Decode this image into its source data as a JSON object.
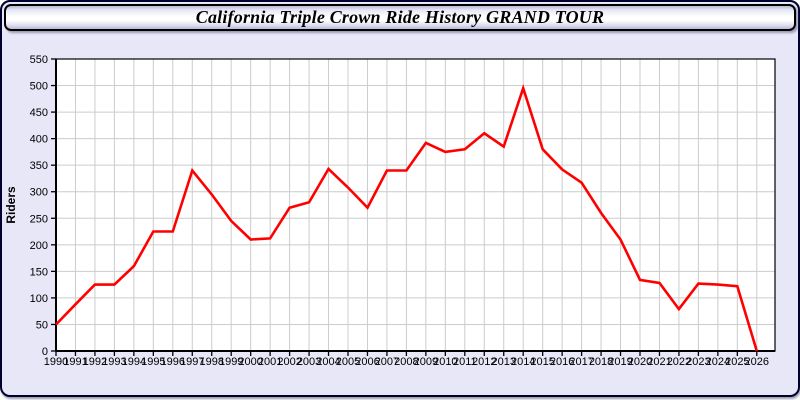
{
  "chart_data": {
    "type": "line",
    "title": "California Triple Crown Ride History GRAND TOUR",
    "xlabel": "",
    "ylabel": "Riders",
    "x": [
      1990,
      1991,
      1992,
      1993,
      1994,
      1995,
      1996,
      1997,
      1998,
      1999,
      2000,
      2001,
      2002,
      2003,
      2004,
      2005,
      2006,
      2007,
      2008,
      2009,
      2010,
      2011,
      2012,
      2013,
      2014,
      2015,
      2016,
      2017,
      2018,
      2019,
      2020,
      2021,
      2022,
      2023,
      2024,
      2025,
      2026
    ],
    "series": [
      {
        "name": "Riders",
        "color": "#ff0000",
        "values": [
          50,
          88,
          125,
          125,
          160,
          225,
          225,
          340,
          295,
          245,
          210,
          212,
          270,
          280,
          343,
          308,
          270,
          340,
          340,
          392,
          375,
          380,
          410,
          385,
          495,
          380,
          342,
          317,
          260,
          210,
          134,
          128,
          79,
          127,
          125,
          122,
          0
        ]
      }
    ],
    "ylim": [
      0,
      550
    ],
    "yticks": [
      0,
      50,
      100,
      150,
      200,
      250,
      300,
      350,
      400,
      450,
      500,
      550
    ],
    "grid": true,
    "legend": "none",
    "plot_bg": "#ffffff",
    "grid_color": "#cccccc",
    "axis_color": "#000000",
    "page_bg": "#e7e7f8",
    "tick_font_px": 11
  }
}
